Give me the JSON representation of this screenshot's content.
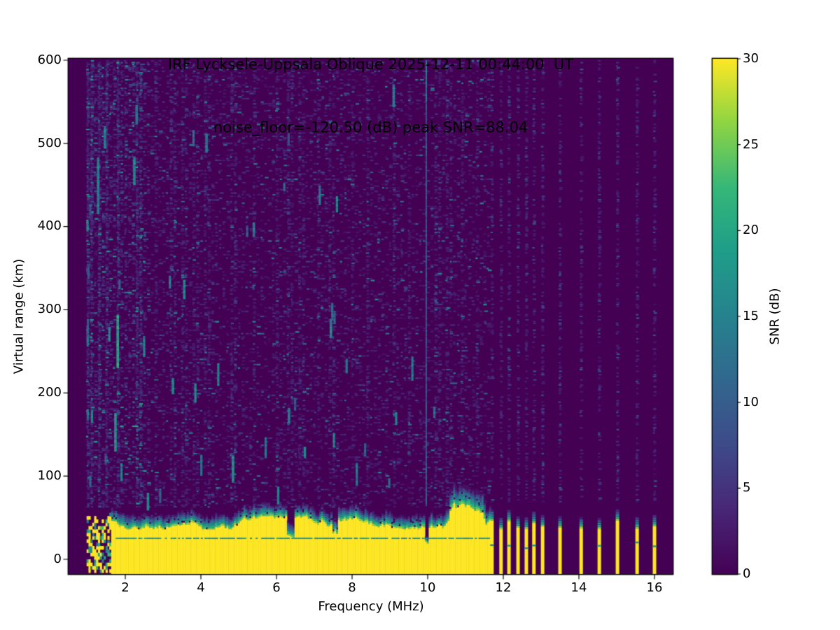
{
  "chart_data": {
    "type": "heatmap",
    "title": "IRF Lycksele-Uppsala Oblique 2025-12-11 00:44:00  UT",
    "subtitle": "noise_floor=-120.50 (dB) peak SNR=88.04",
    "station": "IRF Lycksele-Uppsala Oblique",
    "timestamp_ut": "2025-12-11 00:44:00",
    "noise_floor_db": -120.5,
    "peak_snr_db": 88.04,
    "xlabel": "Frequency (MHz)",
    "ylabel": "Virtual range (km)",
    "xlim": [
      0.5,
      16.5
    ],
    "ylim": [
      -18,
      600
    ],
    "x_ticks": [
      2,
      4,
      6,
      8,
      10,
      12,
      14,
      16
    ],
    "y_ticks": [
      0,
      100,
      200,
      300,
      400,
      500,
      600
    ],
    "grid": false,
    "colormap": "viridis",
    "colorbar": {
      "label": "SNR (dB)",
      "min": 0,
      "max": 30,
      "ticks": [
        0,
        5,
        10,
        15,
        20,
        25,
        30
      ],
      "position": "right"
    },
    "viridis_stops": [
      [
        0,
        68,
        1,
        84
      ],
      [
        0.13,
        72,
        40,
        120
      ],
      [
        0.25,
        62,
        74,
        137
      ],
      [
        0.38,
        49,
        104,
        142
      ],
      [
        0.5,
        38,
        130,
        142
      ],
      [
        0.63,
        31,
        158,
        137
      ],
      [
        0.75,
        53,
        183,
        121
      ],
      [
        0.88,
        145,
        213,
        66
      ],
      [
        1,
        253,
        231,
        37
      ]
    ],
    "features": {
      "background_snr_db": 0,
      "data_freq_start_mhz": 1.0,
      "ground_echo_band": {
        "freq_start_mhz": 1.0,
        "freq_end_mhz": 11.65,
        "mean_top_km": 44,
        "fuzz_top_km": 60,
        "saturated_snr_db": 30,
        "patchy_below_mhz": 1.6,
        "thin_teal_line_km": 26,
        "dip_freqs_mhz": [
          6.35,
          7.52,
          9.96
        ],
        "bump_range_mhz": [
          10.55,
          11.5
        ]
      },
      "discrete_stripe_freqs_mhz": [
        11.7,
        11.94,
        12.15,
        12.39,
        12.61,
        12.81,
        13.04,
        13.5,
        14.06,
        14.54,
        15.02,
        15.54,
        16.0
      ],
      "interference_line_mhz": 9.96,
      "enhanced_noise_columns_mhz": [
        1.05,
        1.3,
        1.5,
        1.8,
        2.35,
        2.8,
        3.25,
        3.55,
        3.85,
        4.15,
        4.85,
        5.4,
        6.0,
        6.35,
        6.65,
        7.1,
        7.45,
        8.0,
        8.4,
        9.1,
        9.5,
        10.25,
        10.55,
        10.9,
        11.3
      ],
      "echo_streaks": [
        {
          "f": 1.28,
          "km_top": 483,
          "km_bot": 416,
          "v": 0.5
        },
        {
          "f": 1.8,
          "km_top": 294,
          "km_bot": 232,
          "v": 0.68
        },
        {
          "f": 1.46,
          "km_top": 521,
          "km_bot": 494,
          "v": 0.5
        },
        {
          "f": 2.24,
          "km_top": 483,
          "km_bot": 452,
          "v": 0.55
        },
        {
          "f": 2.3,
          "km_top": 546,
          "km_bot": 523,
          "v": 0.48
        },
        {
          "f": 1.74,
          "km_top": 176,
          "km_bot": 130,
          "v": 0.6
        },
        {
          "f": 3.56,
          "km_top": 336,
          "km_bot": 313,
          "v": 0.5
        },
        {
          "f": 4.15,
          "km_top": 512,
          "km_bot": 489,
          "v": 0.45
        },
        {
          "f": 4.85,
          "km_top": 125,
          "km_bot": 94,
          "v": 0.55
        },
        {
          "f": 6.33,
          "km_top": 182,
          "km_bot": 165,
          "v": 0.5
        },
        {
          "f": 7.44,
          "km_top": 289,
          "km_bot": 266,
          "v": 0.5
        },
        {
          "f": 9.1,
          "km_top": 571,
          "km_bot": 544,
          "v": 0.48
        },
        {
          "f": 3.26,
          "km_top": 218,
          "km_bot": 199,
          "v": 0.5
        },
        {
          "f": 5.4,
          "km_top": 405,
          "km_bot": 388,
          "v": 0.45
        },
        {
          "f": 2.6,
          "km_top": 80,
          "km_bot": 60,
          "v": 0.55
        }
      ]
    }
  }
}
